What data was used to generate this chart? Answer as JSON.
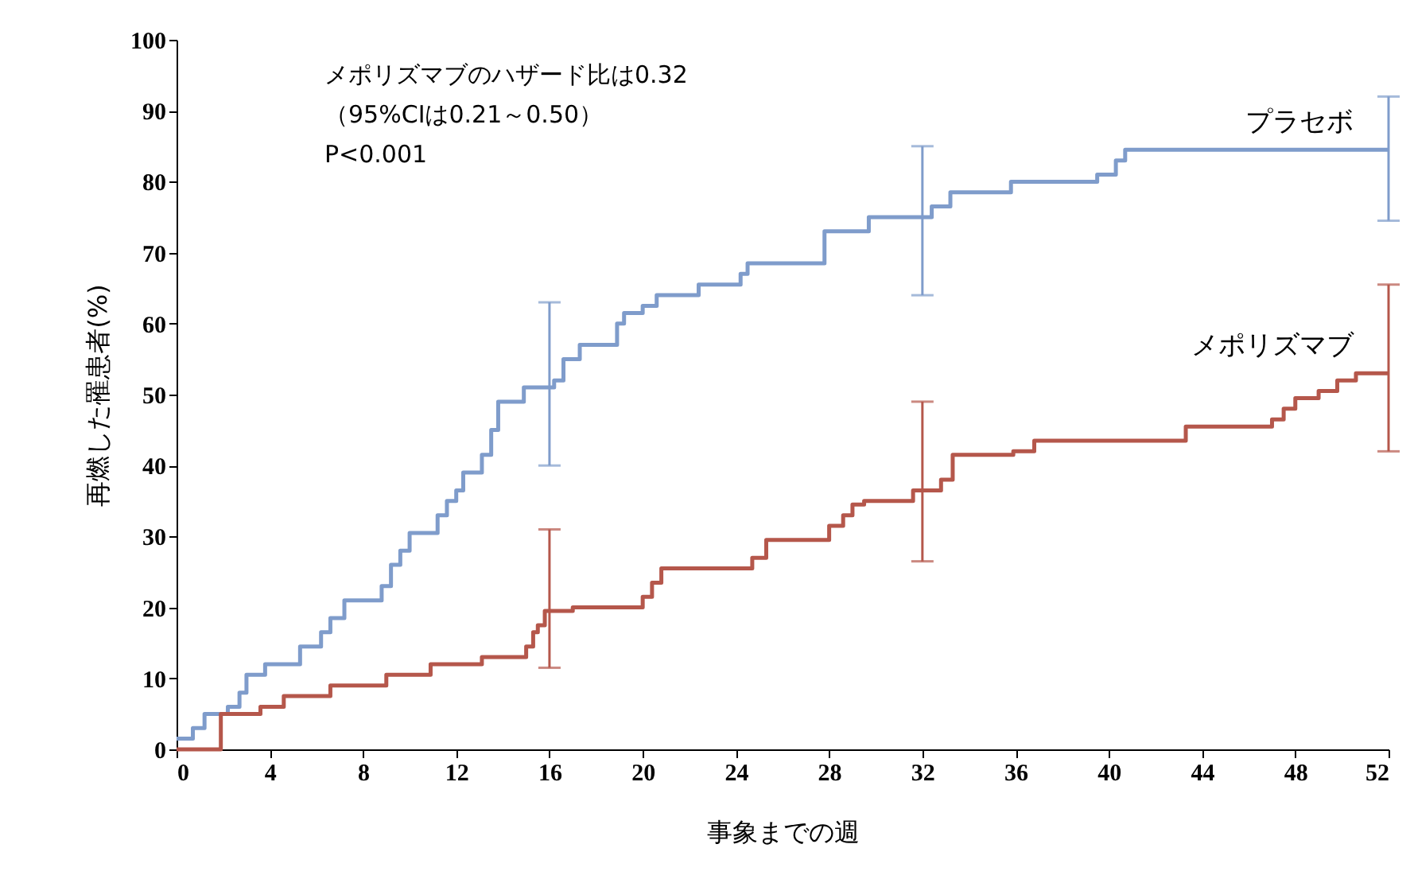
{
  "chart_data": {
    "type": "step",
    "xlabel": "事象までの週",
    "ylabel": "再燃した罹患者(%)",
    "annotations": [
      "メポリズマブのハザード比は0.32",
      "（95%CIは0.21～0.50）",
      "P<0.001"
    ],
    "xlim": [
      0,
      52
    ],
    "xticks": [
      0,
      4,
      8,
      12,
      16,
      20,
      24,
      28,
      32,
      36,
      40,
      44,
      48,
      52
    ],
    "ylim": [
      0,
      100
    ],
    "yticks": [
      0,
      10,
      20,
      30,
      40,
      50,
      60,
      70,
      80,
      90,
      100
    ],
    "grid": false,
    "legend": false,
    "marker": "none",
    "line_style": "solid",
    "series": [
      {
        "name": "プラセボ",
        "color": "#7f9ccb",
        "x": [
          0,
          0.7,
          1.2,
          2.2,
          2.7,
          3.0,
          3.8,
          5.3,
          6.2,
          6.6,
          7.2,
          8.8,
          9.2,
          9.6,
          10.0,
          11.2,
          11.6,
          12.0,
          12.3,
          13.1,
          13.5,
          13.8,
          14.9,
          16,
          16.2,
          16.6,
          17.3,
          18.9,
          19.2,
          20.0,
          20.6,
          22.4,
          24.2,
          24.5,
          27.8,
          29.7,
          32,
          32.4,
          33.2,
          35.8,
          39.5,
          40.3,
          40.7,
          52
        ],
        "values": [
          1.5,
          3,
          5,
          6,
          8,
          10.5,
          12,
          14.5,
          16.5,
          18.5,
          21,
          23,
          26,
          28,
          30.5,
          33,
          35,
          36.5,
          39,
          41.5,
          45,
          49,
          51,
          51,
          52,
          55,
          57,
          60,
          61.5,
          62.5,
          64,
          65.5,
          67,
          68.5,
          73,
          75,
          75,
          76.5,
          78.5,
          80,
          81,
          83,
          84.5,
          84.5
        ],
        "errors": [
          null,
          null,
          null,
          null,
          null,
          null,
          null,
          null,
          null,
          null,
          null,
          null,
          null,
          null,
          null,
          null,
          null,
          null,
          null,
          null,
          null,
          null,
          null,
          [
            40,
            63
          ],
          null,
          null,
          null,
          null,
          null,
          null,
          null,
          null,
          null,
          null,
          null,
          null,
          [
            64,
            85
          ],
          null,
          null,
          null,
          null,
          null,
          null,
          [
            74.5,
            92
          ]
        ]
      },
      {
        "name": "メポリズマブ",
        "color": "#b5574b",
        "x": [
          0,
          1.9,
          3.6,
          4.6,
          6.6,
          9.0,
          10.9,
          13.1,
          15.0,
          15.3,
          15.5,
          15.8,
          16,
          17.0,
          20.0,
          20.4,
          20.8,
          24.7,
          25.3,
          28.0,
          28.6,
          29.0,
          29.5,
          31.6,
          32,
          32.8,
          33.3,
          35.9,
          36.8,
          43.3,
          47.0,
          47.5,
          48.0,
          49.0,
          49.8,
          50.6,
          52
        ],
        "values": [
          0,
          5,
          6,
          7.5,
          9,
          10.5,
          12,
          13,
          14.5,
          16.5,
          17.5,
          19.5,
          19.5,
          20,
          21.5,
          23.5,
          25.5,
          27,
          29.5,
          31.5,
          33,
          34.5,
          35,
          36.5,
          36.5,
          38,
          41.5,
          42,
          43.5,
          45.5,
          46.5,
          48,
          49.5,
          50.5,
          52,
          53,
          53
        ],
        "errors": [
          null,
          null,
          null,
          null,
          null,
          null,
          null,
          null,
          null,
          null,
          null,
          null,
          [
            11.5,
            31
          ],
          null,
          null,
          null,
          null,
          null,
          null,
          null,
          null,
          null,
          null,
          null,
          [
            26.5,
            49
          ],
          null,
          null,
          null,
          null,
          null,
          null,
          null,
          null,
          null,
          null,
          null,
          [
            42,
            65.5
          ]
        ]
      }
    ]
  }
}
